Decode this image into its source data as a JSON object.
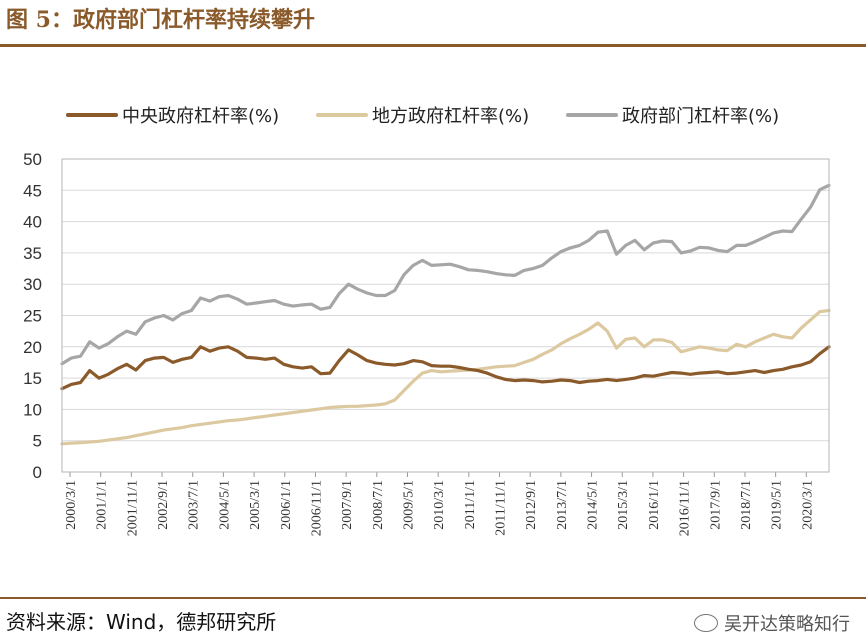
{
  "header": {
    "title": "图 5：政府部门杠杆率持续攀升"
  },
  "footer": {
    "source": "资料来源：Wind，德邦研究所",
    "watermark": "吴开达策略知行"
  },
  "chart_data": {
    "type": "line",
    "ylim": [
      0,
      50
    ],
    "yticks": [
      0,
      5,
      10,
      15,
      20,
      25,
      30,
      35,
      40,
      45,
      50
    ],
    "x_ticklabels": [
      "2000/3/1",
      "2001/1/1",
      "2001/11/1",
      "2002/9/1",
      "2003/7/1",
      "2004/5/1",
      "2005/3/1",
      "2006/1/1",
      "2006/11/1",
      "2007/9/1",
      "2008/7/1",
      "2009/5/1",
      "2010/3/1",
      "2011/1/1",
      "2011/11/1",
      "2012/9/1",
      "2013/7/1",
      "2014/5/1",
      "2015/3/1",
      "2016/1/1",
      "2016/11/1",
      "2017/9/1",
      "2018/7/1",
      "2019/5/1",
      "2020/3/1"
    ],
    "x": [
      "2000/3",
      "2000/6",
      "2000/9",
      "2000/12",
      "2001/3",
      "2001/6",
      "2001/9",
      "2001/12",
      "2002/3",
      "2002/6",
      "2002/9",
      "2002/12",
      "2003/3",
      "2003/6",
      "2003/9",
      "2003/12",
      "2004/3",
      "2004/6",
      "2004/9",
      "2004/12",
      "2005/3",
      "2005/6",
      "2005/9",
      "2005/12",
      "2006/3",
      "2006/6",
      "2006/9",
      "2006/12",
      "2007/3",
      "2007/6",
      "2007/9",
      "2007/12",
      "2008/3",
      "2008/6",
      "2008/9",
      "2008/12",
      "2009/3",
      "2009/6",
      "2009/9",
      "2009/12",
      "2010/3",
      "2010/6",
      "2010/9",
      "2010/12",
      "2011/3",
      "2011/6",
      "2011/9",
      "2011/12",
      "2012/3",
      "2012/6",
      "2012/9",
      "2012/12",
      "2013/3",
      "2013/6",
      "2013/9",
      "2013/12",
      "2014/3",
      "2014/6",
      "2014/9",
      "2014/12",
      "2015/3",
      "2015/6",
      "2015/9",
      "2015/12",
      "2016/3",
      "2016/6",
      "2016/9",
      "2016/12",
      "2017/3",
      "2017/6",
      "2017/9",
      "2017/12",
      "2018/3",
      "2018/6",
      "2018/9",
      "2018/12",
      "2019/3",
      "2019/6",
      "2019/9",
      "2019/12",
      "2020/3",
      "2020/6",
      "2020/9",
      "2020/12"
    ],
    "series": [
      {
        "name": "中央政府杠杆率(%)",
        "color": "#8b5a2b",
        "values": [
          13.3,
          14.0,
          14.3,
          16.2,
          15.0,
          15.6,
          16.5,
          17.2,
          16.3,
          17.8,
          18.2,
          18.3,
          17.5,
          18.0,
          18.3,
          20.0,
          19.3,
          19.8,
          20.0,
          19.3,
          18.3,
          18.2,
          18.0,
          18.2,
          17.2,
          16.8,
          16.6,
          16.8,
          15.7,
          15.8,
          17.8,
          19.5,
          18.7,
          17.8,
          17.4,
          17.2,
          17.1,
          17.3,
          17.8,
          17.6,
          17.0,
          16.9,
          16.9,
          16.7,
          16.4,
          16.2,
          15.8,
          15.2,
          14.8,
          14.6,
          14.7,
          14.6,
          14.4,
          14.5,
          14.7,
          14.6,
          14.3,
          14.5,
          14.6,
          14.8,
          14.6,
          14.8,
          15.0,
          15.4,
          15.3,
          15.6,
          15.9,
          15.8,
          15.6,
          15.8,
          15.9,
          16.0,
          15.7,
          15.8,
          16.0,
          16.2,
          15.9,
          16.2,
          16.4,
          16.8,
          17.1,
          17.6,
          18.9,
          20.0
        ]
      },
      {
        "name": "地方政府杠杆率(%)",
        "color": "#dcc9a0",
        "values": [
          4.5,
          4.6,
          4.7,
          4.8,
          4.9,
          5.1,
          5.3,
          5.5,
          5.8,
          6.1,
          6.4,
          6.7,
          6.9,
          7.1,
          7.4,
          7.6,
          7.8,
          8.0,
          8.2,
          8.3,
          8.5,
          8.7,
          8.9,
          9.1,
          9.3,
          9.5,
          9.7,
          9.9,
          10.1,
          10.3,
          10.4,
          10.5,
          10.5,
          10.6,
          10.7,
          10.9,
          11.5,
          13.0,
          14.5,
          15.8,
          16.2,
          16.0,
          16.1,
          16.2,
          16.3,
          16.4,
          16.6,
          16.8,
          16.9,
          17.0,
          17.5,
          18.0,
          18.8,
          19.5,
          20.5,
          21.3,
          22.0,
          22.8,
          23.8,
          22.5,
          19.8,
          21.2,
          21.4,
          20.0,
          21.1,
          21.1,
          20.7,
          19.2,
          19.6,
          20.0,
          19.8,
          19.5,
          19.4,
          20.4,
          20.0,
          20.8,
          21.4,
          22.0,
          21.6,
          21.4,
          23.0,
          24.3,
          25.6,
          25.8
        ]
      },
      {
        "name": "政府部门杠杆率(%)",
        "color": "#a6a6a6",
        "values": [
          17.3,
          18.2,
          18.5,
          20.8,
          19.8,
          20.5,
          21.6,
          22.5,
          22.0,
          24.0,
          24.6,
          25.0,
          24.3,
          25.3,
          25.8,
          27.8,
          27.3,
          28.0,
          28.2,
          27.6,
          26.8,
          27.0,
          27.2,
          27.4,
          26.8,
          26.5,
          26.7,
          26.8,
          26.0,
          26.3,
          28.5,
          30.0,
          29.2,
          28.6,
          28.2,
          28.2,
          29.0,
          31.5,
          33.0,
          33.8,
          33.0,
          33.1,
          33.2,
          32.8,
          32.3,
          32.2,
          32.0,
          31.7,
          31.5,
          31.4,
          32.2,
          32.5,
          33.0,
          34.2,
          35.2,
          35.8,
          36.2,
          37.0,
          38.3,
          38.5,
          34.8,
          36.2,
          37.0,
          35.5,
          36.6,
          36.9,
          36.8,
          35.0,
          35.3,
          35.9,
          35.8,
          35.4,
          35.2,
          36.2,
          36.2,
          36.8,
          37.5,
          38.2,
          38.5,
          38.4,
          40.4,
          42.3,
          45.1,
          45.8
        ]
      }
    ]
  }
}
